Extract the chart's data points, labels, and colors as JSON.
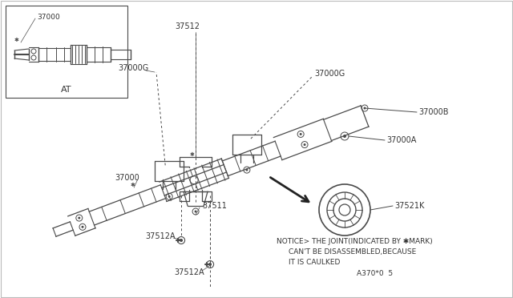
{
  "bg_color": "#ffffff",
  "line_color": "#4a4a4a",
  "text_color": "#333333",
  "notice_line1": "NOTICE> THE JOINT(INDICATED BY ✱MARK)",
  "notice_line2": "CAN'T BE DISASSEMBLED,BECAUSE",
  "notice_line3": "IT IS CAULKED",
  "notice_ref": "A370*0  5",
  "label_37000_inset": "37000",
  "label_37512": "37512",
  "label_37000G_left": "37000G",
  "label_37000G_right": "37000G",
  "label_37000B": "37000B",
  "label_37000A": "37000A",
  "label_37000_main": "37000",
  "label_37511": "37511",
  "label_37512A_top": "37512A",
  "label_37512A_bot": "37512A",
  "label_37521K": "37521K",
  "label_AT": "AT",
  "font_size_label": 7,
  "font_size_notice": 6.5,
  "font_size_ref": 6.5,
  "star_char": "✱"
}
